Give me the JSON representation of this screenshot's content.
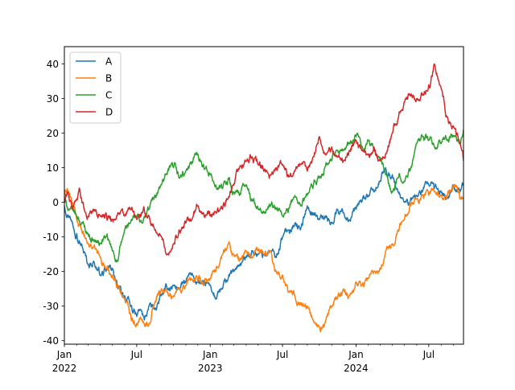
{
  "chart_data": {
    "type": "line",
    "title": "",
    "xlabel": "",
    "ylabel": "",
    "ylim": [
      -41,
      45
    ],
    "xlim": [
      "2022-01-01",
      "2024-09-26"
    ],
    "grid": false,
    "legend_position": "top-left",
    "yticks": [
      -40,
      -30,
      -20,
      -10,
      0,
      10,
      20,
      30,
      40
    ],
    "xticks_major": [
      {
        "date": "2022-01-01",
        "label": "Jan",
        "sublabel": "2022"
      },
      {
        "date": "2022-07-01",
        "label": "Jul",
        "sublabel": ""
      },
      {
        "date": "2023-01-01",
        "label": "Jan",
        "sublabel": "2023"
      },
      {
        "date": "2023-07-01",
        "label": "Jul",
        "sublabel": ""
      },
      {
        "date": "2024-01-01",
        "label": "Jan",
        "sublabel": "2024"
      },
      {
        "date": "2024-07-01",
        "label": "Jul",
        "sublabel": ""
      }
    ],
    "series": [
      {
        "name": "A",
        "color": "#1f77b4",
        "points": [
          [
            "2022-01-01",
            -1
          ],
          [
            "2022-01-15",
            -4
          ],
          [
            "2022-02-01",
            -9
          ],
          [
            "2022-02-15",
            -13
          ],
          [
            "2022-03-01",
            -18
          ],
          [
            "2022-03-15",
            -17
          ],
          [
            "2022-04-01",
            -21
          ],
          [
            "2022-04-15",
            -20
          ],
          [
            "2022-05-01",
            -19
          ],
          [
            "2022-05-15",
            -25
          ],
          [
            "2022-06-01",
            -27
          ],
          [
            "2022-06-15",
            -30
          ],
          [
            "2022-07-01",
            -33
          ],
          [
            "2022-07-10",
            -31
          ],
          [
            "2022-07-20",
            -34
          ],
          [
            "2022-08-01",
            -30
          ],
          [
            "2022-08-15",
            -31
          ],
          [
            "2022-09-01",
            -27
          ],
          [
            "2022-09-15",
            -25
          ],
          [
            "2022-10-01",
            -24
          ],
          [
            "2022-10-15",
            -25
          ],
          [
            "2022-11-01",
            -23
          ],
          [
            "2022-11-15",
            -21
          ],
          [
            "2022-12-01",
            -23
          ],
          [
            "2022-12-15",
            -24
          ],
          [
            "2023-01-01",
            -24
          ],
          [
            "2023-01-15",
            -28
          ],
          [
            "2023-02-01",
            -25
          ],
          [
            "2023-02-15",
            -22
          ],
          [
            "2023-03-01",
            -20
          ],
          [
            "2023-03-15",
            -18
          ],
          [
            "2023-04-01",
            -16
          ],
          [
            "2023-04-15",
            -14
          ],
          [
            "2023-05-01",
            -15
          ],
          [
            "2023-05-15",
            -15
          ],
          [
            "2023-06-01",
            -14
          ],
          [
            "2023-06-15",
            -16
          ],
          [
            "2023-07-01",
            -10
          ],
          [
            "2023-07-15",
            -8
          ],
          [
            "2023-08-01",
            -6
          ],
          [
            "2023-08-15",
            -8
          ],
          [
            "2023-09-01",
            -1
          ],
          [
            "2023-09-15",
            -3
          ],
          [
            "2023-10-01",
            -5
          ],
          [
            "2023-10-15",
            -4
          ],
          [
            "2023-11-01",
            -6
          ],
          [
            "2023-11-15",
            -2
          ],
          [
            "2023-12-01",
            -3
          ],
          [
            "2023-12-15",
            -5
          ],
          [
            "2024-01-01",
            -2
          ],
          [
            "2024-01-15",
            0
          ],
          [
            "2024-02-01",
            2
          ],
          [
            "2024-02-15",
            3
          ],
          [
            "2024-03-01",
            6
          ],
          [
            "2024-03-15",
            10
          ],
          [
            "2024-04-01",
            8
          ],
          [
            "2024-04-15",
            3
          ],
          [
            "2024-05-01",
            0
          ],
          [
            "2024-05-15",
            0
          ],
          [
            "2024-06-01",
            2
          ],
          [
            "2024-06-15",
            3
          ],
          [
            "2024-07-01",
            5
          ],
          [
            "2024-07-15",
            4
          ],
          [
            "2024-08-01",
            3
          ],
          [
            "2024-08-15",
            1
          ],
          [
            "2024-09-01",
            5
          ],
          [
            "2024-09-15",
            4
          ],
          [
            "2024-09-26",
            5
          ]
        ]
      },
      {
        "name": "B",
        "color": "#ff7f0e",
        "points": [
          [
            "2022-01-01",
            2
          ],
          [
            "2022-01-08",
            4
          ],
          [
            "2022-01-20",
            0
          ],
          [
            "2022-02-01",
            -5
          ],
          [
            "2022-02-15",
            -9
          ],
          [
            "2022-03-01",
            -12
          ],
          [
            "2022-03-15",
            -13
          ],
          [
            "2022-04-01",
            -16
          ],
          [
            "2022-04-15",
            -19
          ],
          [
            "2022-05-01",
            -21
          ],
          [
            "2022-05-15",
            -24
          ],
          [
            "2022-06-01",
            -28
          ],
          [
            "2022-06-15",
            -32
          ],
          [
            "2022-07-01",
            -35
          ],
          [
            "2022-07-15",
            -34
          ],
          [
            "2022-08-01",
            -35
          ],
          [
            "2022-08-15",
            -29
          ],
          [
            "2022-09-01",
            -25
          ],
          [
            "2022-09-15",
            -26
          ],
          [
            "2022-10-01",
            -27
          ],
          [
            "2022-10-15",
            -25
          ],
          [
            "2022-11-01",
            -24
          ],
          [
            "2022-11-15",
            -22
          ],
          [
            "2022-12-01",
            -23
          ],
          [
            "2022-12-15",
            -24
          ],
          [
            "2023-01-01",
            -22
          ],
          [
            "2023-01-15",
            -20
          ],
          [
            "2023-02-01",
            -15
          ],
          [
            "2023-02-15",
            -12
          ],
          [
            "2023-03-01",
            -15
          ],
          [
            "2023-03-15",
            -17
          ],
          [
            "2023-04-01",
            -14
          ],
          [
            "2023-04-15",
            -16
          ],
          [
            "2023-05-01",
            -14
          ],
          [
            "2023-05-15",
            -15
          ],
          [
            "2023-06-01",
            -14
          ],
          [
            "2023-06-15",
            -20
          ],
          [
            "2023-07-01",
            -21
          ],
          [
            "2023-07-15",
            -26
          ],
          [
            "2023-08-01",
            -27
          ],
          [
            "2023-08-15",
            -29
          ],
          [
            "2023-09-01",
            -30
          ],
          [
            "2023-09-15",
            -34
          ],
          [
            "2023-10-01",
            -36
          ],
          [
            "2023-10-15",
            -35
          ],
          [
            "2023-11-01",
            -30
          ],
          [
            "2023-11-15",
            -28
          ],
          [
            "2023-12-01",
            -25
          ],
          [
            "2023-12-15",
            -27
          ],
          [
            "2024-01-01",
            -23
          ],
          [
            "2024-01-15",
            -24
          ],
          [
            "2024-02-01",
            -22
          ],
          [
            "2024-02-15",
            -20
          ],
          [
            "2024-03-01",
            -19
          ],
          [
            "2024-03-15",
            -14
          ],
          [
            "2024-04-01",
            -12
          ],
          [
            "2024-04-15",
            -8
          ],
          [
            "2024-05-01",
            -5
          ],
          [
            "2024-05-15",
            0
          ],
          [
            "2024-06-01",
            1
          ],
          [
            "2024-06-15",
            2
          ],
          [
            "2024-07-01",
            2
          ],
          [
            "2024-07-15",
            3
          ],
          [
            "2024-08-01",
            2
          ],
          [
            "2024-08-15",
            1
          ],
          [
            "2024-09-01",
            5
          ],
          [
            "2024-09-15",
            3
          ],
          [
            "2024-09-26",
            1
          ]
        ]
      },
      {
        "name": "C",
        "color": "#2ca02c",
        "points": [
          [
            "2022-01-01",
            0
          ],
          [
            "2022-01-15",
            -2
          ],
          [
            "2022-02-01",
            -4
          ],
          [
            "2022-02-15",
            -6
          ],
          [
            "2022-03-01",
            -9
          ],
          [
            "2022-03-15",
            -11
          ],
          [
            "2022-04-01",
            -12
          ],
          [
            "2022-04-15",
            -10
          ],
          [
            "2022-05-01",
            -14
          ],
          [
            "2022-05-15",
            -17
          ],
          [
            "2022-06-01",
            -8
          ],
          [
            "2022-06-15",
            -6
          ],
          [
            "2022-07-01",
            -4
          ],
          [
            "2022-07-15",
            -6
          ],
          [
            "2022-08-01",
            -2
          ],
          [
            "2022-08-15",
            2
          ],
          [
            "2022-09-01",
            5
          ],
          [
            "2022-09-15",
            8
          ],
          [
            "2022-10-01",
            10
          ],
          [
            "2022-10-15",
            7
          ],
          [
            "2022-11-01",
            9
          ],
          [
            "2022-11-15",
            11
          ],
          [
            "2022-12-01",
            14
          ],
          [
            "2022-12-15",
            11
          ],
          [
            "2023-01-01",
            8
          ],
          [
            "2023-01-15",
            5
          ],
          [
            "2023-02-01",
            4
          ],
          [
            "2023-02-15",
            7
          ],
          [
            "2023-03-01",
            3
          ],
          [
            "2023-03-15",
            2
          ],
          [
            "2023-04-01",
            5
          ],
          [
            "2023-04-15",
            1
          ],
          [
            "2023-05-01",
            -2
          ],
          [
            "2023-05-15",
            -3
          ],
          [
            "2023-06-01",
            -1
          ],
          [
            "2023-06-15",
            -2
          ],
          [
            "2023-07-01",
            -4
          ],
          [
            "2023-07-15",
            -3
          ],
          [
            "2023-08-01",
            2
          ],
          [
            "2023-08-15",
            -1
          ],
          [
            "2023-09-01",
            2
          ],
          [
            "2023-09-15",
            4
          ],
          [
            "2023-10-01",
            7
          ],
          [
            "2023-10-15",
            10
          ],
          [
            "2023-11-01",
            12
          ],
          [
            "2023-11-15",
            15
          ],
          [
            "2023-12-01",
            15
          ],
          [
            "2023-12-15",
            17
          ],
          [
            "2024-01-01",
            19
          ],
          [
            "2024-01-15",
            16
          ],
          [
            "2024-02-01",
            18
          ],
          [
            "2024-02-15",
            15
          ],
          [
            "2024-03-01",
            13
          ],
          [
            "2024-03-15",
            8
          ],
          [
            "2024-04-01",
            3
          ],
          [
            "2024-04-15",
            7
          ],
          [
            "2024-05-01",
            6
          ],
          [
            "2024-05-15",
            9
          ],
          [
            "2024-06-01",
            17
          ],
          [
            "2024-06-15",
            19
          ],
          [
            "2024-07-01",
            18
          ],
          [
            "2024-07-15",
            16
          ],
          [
            "2024-08-01",
            17
          ],
          [
            "2024-08-15",
            18
          ],
          [
            "2024-09-01",
            19
          ],
          [
            "2024-09-15",
            17
          ],
          [
            "2024-09-26",
            21
          ]
        ]
      },
      {
        "name": "D",
        "color": "#d62728",
        "points": [
          [
            "2022-01-01",
            0
          ],
          [
            "2022-01-10",
            3
          ],
          [
            "2022-01-20",
            -2
          ],
          [
            "2022-02-01",
            1
          ],
          [
            "2022-02-08",
            4
          ],
          [
            "2022-02-20",
            -2
          ],
          [
            "2022-03-01",
            -4
          ],
          [
            "2022-03-15",
            -2
          ],
          [
            "2022-04-01",
            -4
          ],
          [
            "2022-04-15",
            -3
          ],
          [
            "2022-05-01",
            -5
          ],
          [
            "2022-05-15",
            -3
          ],
          [
            "2022-06-01",
            -4
          ],
          [
            "2022-06-15",
            -2
          ],
          [
            "2022-07-01",
            -5
          ],
          [
            "2022-07-15",
            -3
          ],
          [
            "2022-08-01",
            -4
          ],
          [
            "2022-08-15",
            -8
          ],
          [
            "2022-09-01",
            -10
          ],
          [
            "2022-09-15",
            -15
          ],
          [
            "2022-10-01",
            -12
          ],
          [
            "2022-10-15",
            -8
          ],
          [
            "2022-11-01",
            -6
          ],
          [
            "2022-11-15",
            -5
          ],
          [
            "2022-12-01",
            -1
          ],
          [
            "2022-12-15",
            -3
          ],
          [
            "2023-01-01",
            -4
          ],
          [
            "2023-01-15",
            -3
          ],
          [
            "2023-02-01",
            -2
          ],
          [
            "2023-02-15",
            1
          ],
          [
            "2023-03-01",
            5
          ],
          [
            "2023-03-15",
            10
          ],
          [
            "2023-04-01",
            12
          ],
          [
            "2023-04-15",
            13
          ],
          [
            "2023-05-01",
            11
          ],
          [
            "2023-05-15",
            9
          ],
          [
            "2023-06-01",
            8
          ],
          [
            "2023-06-15",
            10
          ],
          [
            "2023-07-01",
            11
          ],
          [
            "2023-07-15",
            8
          ],
          [
            "2023-08-01",
            9
          ],
          [
            "2023-08-15",
            11
          ],
          [
            "2023-09-01",
            9
          ],
          [
            "2023-09-15",
            13
          ],
          [
            "2023-10-01",
            19
          ],
          [
            "2023-10-15",
            14
          ],
          [
            "2023-11-01",
            16
          ],
          [
            "2023-11-15",
            13
          ],
          [
            "2023-12-01",
            12
          ],
          [
            "2023-12-15",
            15
          ],
          [
            "2024-01-01",
            18
          ],
          [
            "2024-01-15",
            15
          ],
          [
            "2024-02-01",
            14
          ],
          [
            "2024-02-15",
            16
          ],
          [
            "2024-03-01",
            12
          ],
          [
            "2024-03-15",
            14
          ],
          [
            "2024-04-01",
            20
          ],
          [
            "2024-04-15",
            24
          ],
          [
            "2024-05-01",
            29
          ],
          [
            "2024-05-15",
            31
          ],
          [
            "2024-06-01",
            30
          ],
          [
            "2024-06-15",
            31
          ],
          [
            "2024-07-01",
            34
          ],
          [
            "2024-07-15",
            40
          ],
          [
            "2024-08-01",
            33
          ],
          [
            "2024-08-15",
            25
          ],
          [
            "2024-09-01",
            22
          ],
          [
            "2024-09-15",
            18
          ],
          [
            "2024-09-26",
            12
          ]
        ]
      }
    ]
  }
}
